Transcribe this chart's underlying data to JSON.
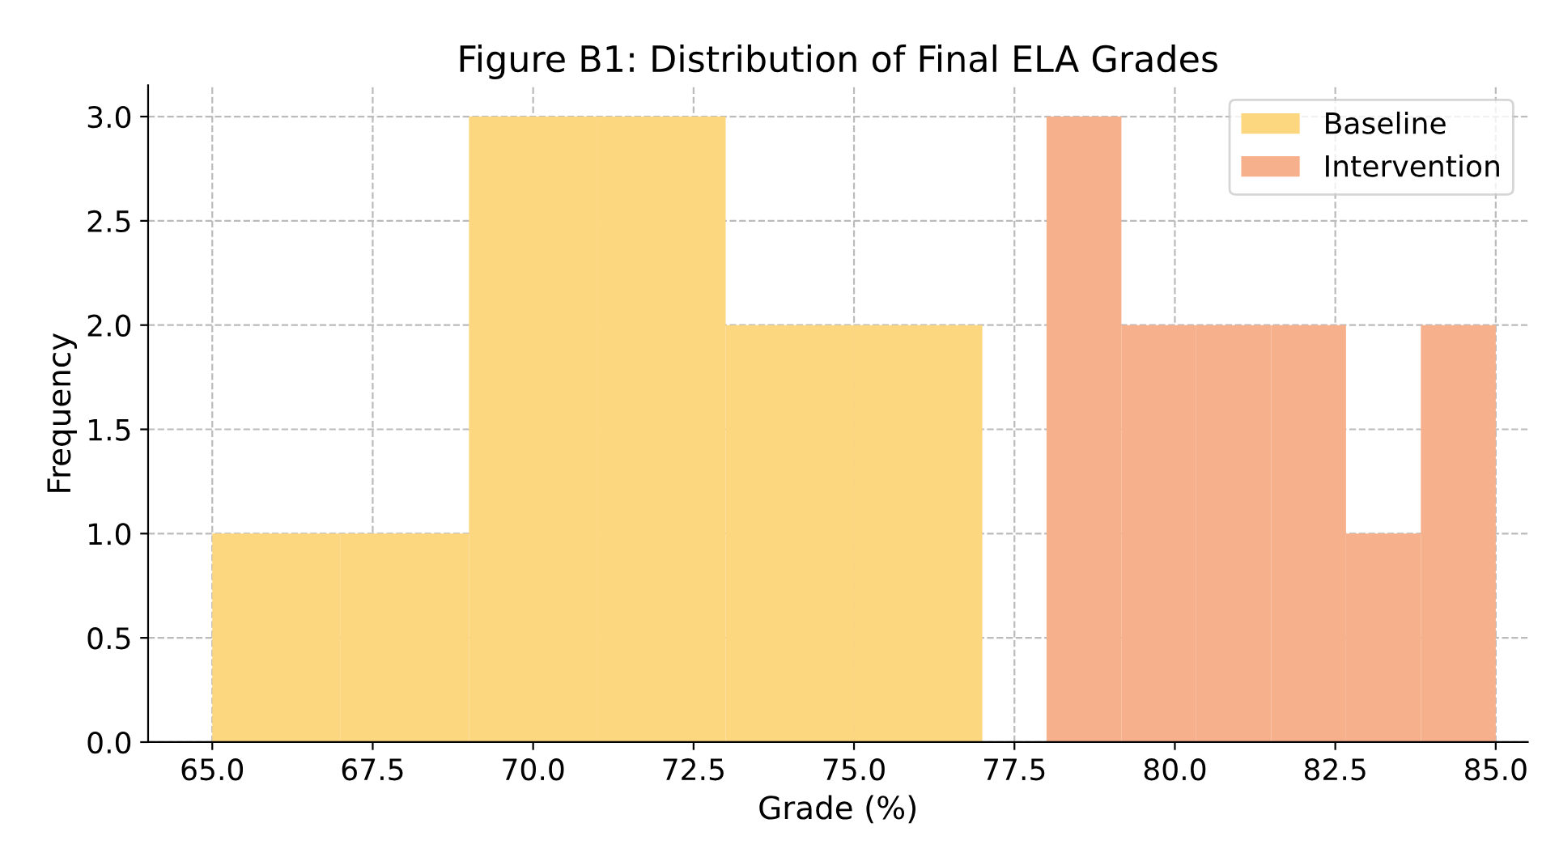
{
  "chart_data": {
    "type": "histogram",
    "title": "Figure B1: Distribution of Final ELA Grades",
    "xlabel": "Grade (%)",
    "ylabel": "Frequency",
    "series": [
      {
        "name": "Baseline",
        "color": "#fdd680",
        "values": [
          1,
          1,
          3,
          3,
          2,
          2,
          null,
          null,
          null,
          null,
          null,
          null,
          null
        ]
      },
      {
        "name": "Intervention",
        "color": "#f7b08c",
        "values": [
          null,
          null,
          null,
          null,
          null,
          null,
          null,
          3,
          2,
          2,
          2,
          1,
          2
        ]
      }
    ],
    "bins": [
      65,
      67,
      69,
      71,
      73,
      75,
      77,
      78,
      79.167,
      80.333,
      81.5,
      82.667,
      83.833,
      85
    ],
    "xlim": [
      64,
      85.5
    ],
    "xticks": [
      {
        "value": 65,
        "label": "65.0"
      },
      {
        "value": 67.5,
        "label": "67.5"
      },
      {
        "value": 70,
        "label": "70.0"
      },
      {
        "value": 72.5,
        "label": "72.5"
      },
      {
        "value": 75,
        "label": "75.0"
      },
      {
        "value": 77.5,
        "label": "77.5"
      },
      {
        "value": 80,
        "label": "80.0"
      },
      {
        "value": 82.5,
        "label": "82.5"
      },
      {
        "value": 85,
        "label": "85.0"
      }
    ],
    "ylim": [
      0,
      3.15
    ],
    "yticks": [
      {
        "value": 0,
        "label": "0.0"
      },
      {
        "value": 0.5,
        "label": "0.5"
      },
      {
        "value": 1,
        "label": "1.0"
      },
      {
        "value": 1.5,
        "label": "1.5"
      },
      {
        "value": 2,
        "label": "2.0"
      },
      {
        "value": 2.5,
        "label": "2.5"
      },
      {
        "value": 3,
        "label": "3.0"
      }
    ],
    "grid": true,
    "legend": "top right"
  }
}
